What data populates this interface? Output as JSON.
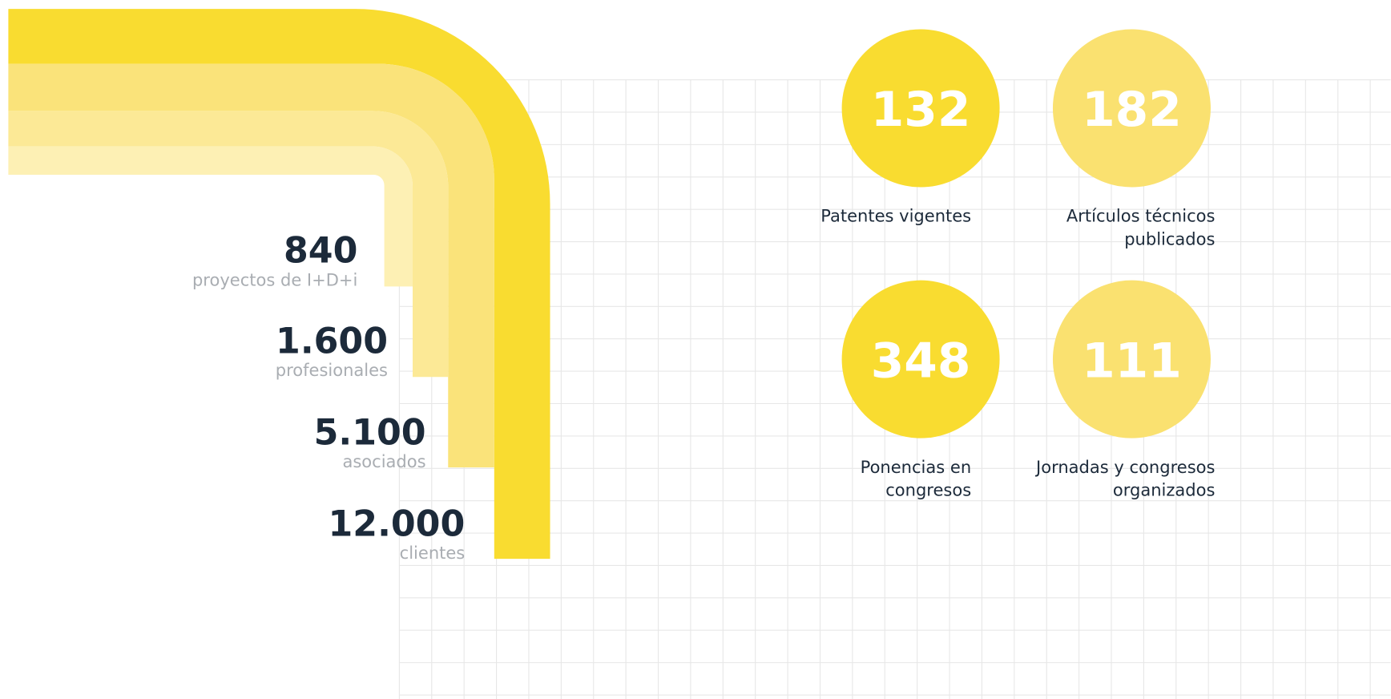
{
  "stats": [
    {
      "value": "840",
      "label": "proyectos de I+D+i"
    },
    {
      "value": "1.600",
      "label": "profesionales"
    },
    {
      "value": "5.100",
      "label": "asociados"
    },
    {
      "value": "12.000",
      "label": "clientes"
    }
  ],
  "highlights": [
    {
      "value": "132",
      "label": [
        "Patentes vigentes"
      ]
    },
    {
      "value": "182",
      "label": [
        "Artículos técnicos",
        "publicados"
      ]
    },
    {
      "value": "348",
      "label": [
        "Ponencias en",
        "congresos"
      ]
    },
    {
      "value": "111",
      "label": [
        "Jornadas y congresos",
        "organizados"
      ]
    }
  ]
}
